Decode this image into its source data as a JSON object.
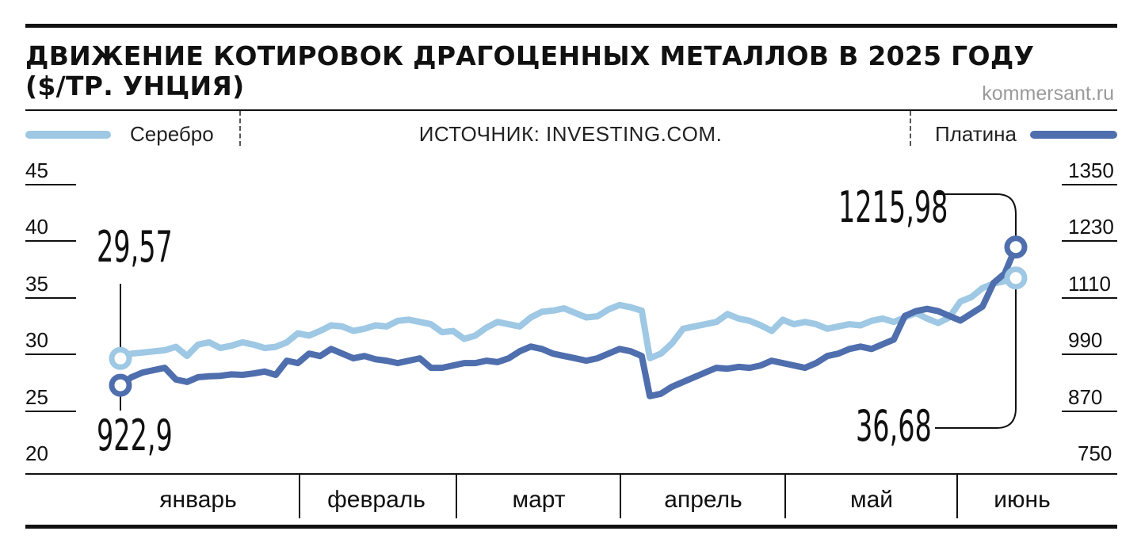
{
  "title": "ДВИЖЕНИЕ КОТИРОВОК ДРАГОЦЕННЫХ МЕТАЛЛОВ В 2025 ГОДУ ($/ТР. УНЦИЯ)",
  "site": "kommersant.ru",
  "source": "ИСТОЧНИК: INVESTING.COM.",
  "colors": {
    "silver": "#9ec8e4",
    "platinum": "#4f6ead"
  },
  "chart_data": {
    "type": "line",
    "title": "ДВИЖЕНИЕ КОТИРОВОК ДРАГОЦЕННЫХ МЕТАЛЛОВ В 2025 ГОДУ ($/ТР. УНЦИЯ)",
    "x_categories": [
      "январь",
      "февраль",
      "март",
      "апрель",
      "май",
      "июнь"
    ],
    "left_axis": {
      "ticks": [
        "45",
        "40",
        "35",
        "30",
        "25",
        "20"
      ],
      "range": [
        20,
        45
      ]
    },
    "right_axis": {
      "ticks": [
        "1350",
        "1230",
        "1110",
        "990",
        "870",
        "750"
      ],
      "range": [
        750,
        1350
      ]
    },
    "grid": false,
    "legend": [
      "top-left",
      "top-right"
    ],
    "series": [
      {
        "name": "Серебро",
        "axis": "left",
        "color": "#9ec8e4",
        "start_label": "29,57",
        "end_label": "36,68",
        "values": [
          29.57,
          30.0,
          30.1,
          30.2,
          30.3,
          30.6,
          29.8,
          30.8,
          31.0,
          30.5,
          30.7,
          31.0,
          30.8,
          30.5,
          30.6,
          31.0,
          31.8,
          31.6,
          32.0,
          32.5,
          32.4,
          32.0,
          32.2,
          32.5,
          32.4,
          32.9,
          33.0,
          32.8,
          32.6,
          31.9,
          32.0,
          31.3,
          31.6,
          32.3,
          32.8,
          32.6,
          32.4,
          33.2,
          33.7,
          33.8,
          34.0,
          33.6,
          33.2,
          33.3,
          33.9,
          34.3,
          34.1,
          33.8,
          29.6,
          30.0,
          30.9,
          32.2,
          32.4,
          32.6,
          32.8,
          33.5,
          33.1,
          32.9,
          32.5,
          32.0,
          33.0,
          32.6,
          32.8,
          32.6,
          32.2,
          32.4,
          32.6,
          32.5,
          32.9,
          33.1,
          32.8,
          33.2,
          33.6,
          33.1,
          32.7,
          33.2,
          34.6,
          35.0,
          35.8,
          36.2,
          36.4,
          36.68
        ],
        "x_positions": [
          0,
          2.2,
          4.4,
          6.6,
          8.8,
          11.0,
          13.2,
          15.4,
          17.6,
          19.8,
          22.0,
          24.2,
          26.4,
          28.6,
          30.8,
          33.0,
          35.2,
          37.4,
          39.6,
          41.8,
          44.0,
          46.2,
          48.4,
          50.6,
          52.8,
          55.0,
          57.2,
          59.4,
          61.6,
          63.8,
          66.0,
          68.2,
          70.4,
          72.6,
          74.8,
          77.0,
          79.2,
          81.4,
          83.6,
          85.8,
          88.0,
          90.2,
          92.4,
          94.6,
          96.8,
          99.0,
          101.2,
          103.4,
          105.0,
          107.2,
          109.4,
          111.6,
          113.8,
          116.0,
          118.2,
          120.4,
          122.6,
          124.8,
          127.0,
          129.2,
          131.4,
          133.6,
          135.8,
          138.0,
          140.2,
          142.4,
          144.6,
          146.8,
          149.0,
          151.2,
          153.4,
          155.6,
          157.8,
          160.0,
          162.2,
          164.4,
          166.6,
          168.8,
          171.0,
          173.2,
          175.4,
          177.6
        ]
      },
      {
        "name": "Платина",
        "axis": "right",
        "color": "#4f6ead",
        "start_label": "922,9",
        "end_label": "1215,98",
        "values": [
          922.9,
          940,
          950,
          955,
          960,
          935,
          930,
          940,
          942,
          943,
          946,
          945,
          948,
          952,
          945,
          975,
          970,
          990,
          985,
          1000,
          990,
          980,
          985,
          978,
          975,
          970,
          975,
          980,
          960,
          960,
          965,
          970,
          970,
          975,
          972,
          980,
          995,
          1005,
          1000,
          990,
          985,
          980,
          975,
          980,
          990,
          1000,
          995,
          985,
          900,
          905,
          920,
          930,
          940,
          950,
          960,
          958,
          962,
          960,
          965,
          975,
          970,
          965,
          960,
          970,
          985,
          990,
          1000,
          1005,
          1000,
          1010,
          1020,
          1070,
          1080,
          1085,
          1080,
          1070,
          1060,
          1075,
          1090,
          1140,
          1160,
          1215.98
        ],
        "x_positions": [
          0,
          2.2,
          4.4,
          6.6,
          8.8,
          11.0,
          13.2,
          15.4,
          17.6,
          19.8,
          22.0,
          24.2,
          26.4,
          28.6,
          30.8,
          33.0,
          35.2,
          37.4,
          39.6,
          41.8,
          44.0,
          46.2,
          48.4,
          50.6,
          52.8,
          55.0,
          57.2,
          59.4,
          61.6,
          63.8,
          66.0,
          68.2,
          70.4,
          72.6,
          74.8,
          77.0,
          79.2,
          81.4,
          83.6,
          85.8,
          88.0,
          90.2,
          92.4,
          94.6,
          96.8,
          99.0,
          101.2,
          103.4,
          105.0,
          107.2,
          109.4,
          111.6,
          113.8,
          116.0,
          118.2,
          120.4,
          122.6,
          124.8,
          127.0,
          129.2,
          131.4,
          133.6,
          135.8,
          138.0,
          140.2,
          142.4,
          144.6,
          146.8,
          149.0,
          151.2,
          153.4,
          155.6,
          157.8,
          160.0,
          162.2,
          164.4,
          166.6,
          168.8,
          171.0,
          173.2,
          175.4,
          177.6
        ]
      }
    ]
  }
}
